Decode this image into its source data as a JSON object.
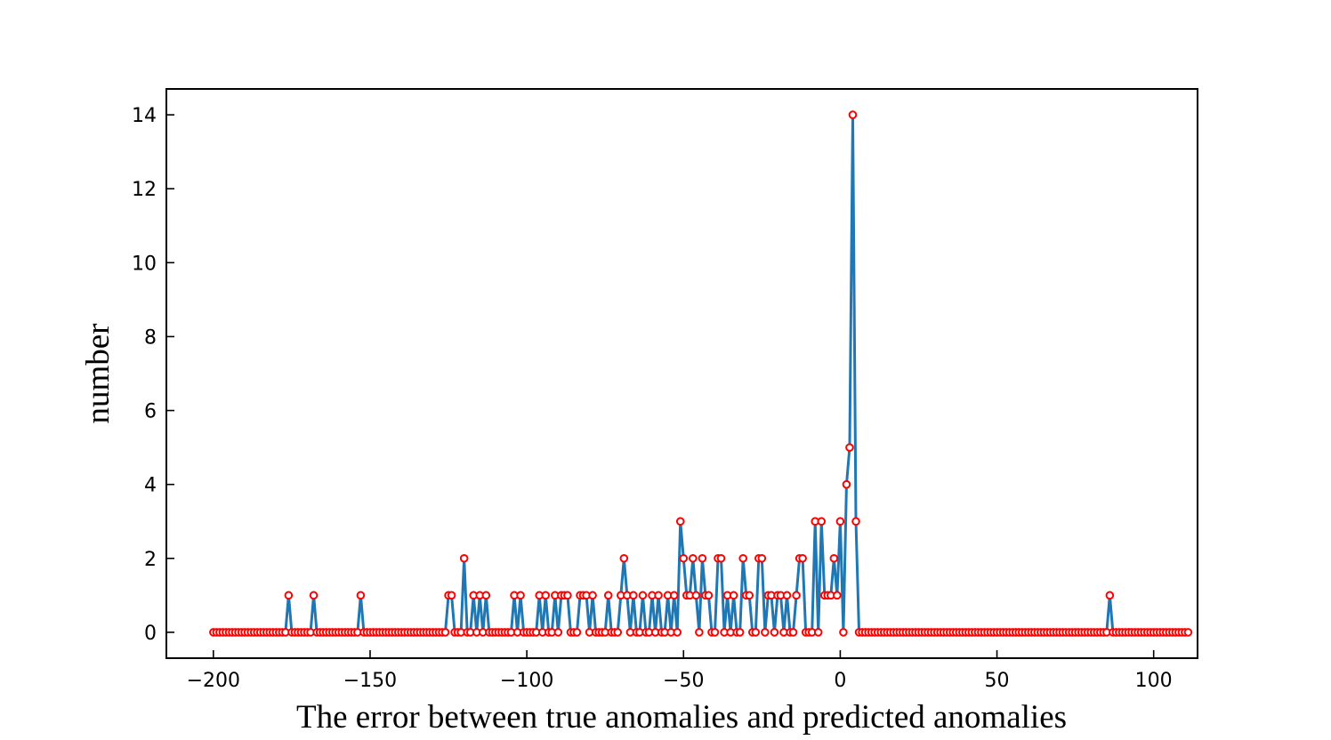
{
  "chart_data": {
    "type": "line",
    "xlabel": "The error between true anomalies and predicted anomalies",
    "ylabel": "number",
    "xlim": [
      -215,
      114
    ],
    "ylim": [
      -0.7,
      14.7
    ],
    "x_ticks": [
      -200,
      -150,
      -100,
      -50,
      0,
      50,
      100
    ],
    "x_tick_labels": [
      "−200",
      "−150",
      "−100",
      "−50",
      "0",
      "50",
      "100"
    ],
    "y_ticks": [
      0,
      2,
      4,
      6,
      8,
      10,
      12,
      14
    ],
    "y_tick_labels": [
      "0",
      "2",
      "4",
      "6",
      "8",
      "10",
      "12",
      "14"
    ],
    "grid": false,
    "series": [
      {
        "line_color": "#1f77b4",
        "marker_edge_color": "#ff0000",
        "marker_face_color": "#ffffff",
        "x_start": -200,
        "x_step": 1,
        "values": [
          0,
          0,
          0,
          0,
          0,
          0,
          0,
          0,
          0,
          0,
          0,
          0,
          0,
          0,
          0,
          0,
          0,
          0,
          0,
          0,
          0,
          0,
          0,
          0,
          1,
          0,
          0,
          0,
          0,
          0,
          0,
          0,
          1,
          0,
          0,
          0,
          0,
          0,
          0,
          0,
          0,
          0,
          0,
          0,
          0,
          0,
          0,
          1,
          0,
          0,
          0,
          0,
          0,
          0,
          0,
          0,
          0,
          0,
          0,
          0,
          0,
          0,
          0,
          0,
          0,
          0,
          0,
          0,
          0,
          0,
          0,
          0,
          0,
          0,
          0,
          1,
          1,
          0,
          0,
          0,
          2,
          0,
          0,
          1,
          0,
          1,
          0,
          1,
          0,
          0,
          0,
          0,
          0,
          0,
          0,
          0,
          1,
          0,
          1,
          0,
          0,
          0,
          0,
          0,
          1,
          0,
          1,
          0,
          0,
          1,
          0,
          1,
          1,
          1,
          0,
          0,
          0,
          1,
          1,
          1,
          0,
          1,
          0,
          0,
          0,
          0,
          1,
          0,
          0,
          0,
          1,
          2,
          1,
          0,
          1,
          0,
          0,
          1,
          0,
          0,
          1,
          0,
          1,
          0,
          0,
          1,
          0,
          1,
          0,
          3,
          2,
          1,
          1,
          2,
          1,
          0,
          2,
          1,
          1,
          0,
          0,
          2,
          2,
          0,
          1,
          0,
          1,
          0,
          0,
          2,
          1,
          1,
          0,
          0,
          2,
          2,
          0,
          1,
          1,
          0,
          1,
          1,
          0,
          1,
          0,
          0,
          1,
          2,
          2,
          0,
          0,
          0,
          3,
          0,
          3,
          1,
          1,
          1,
          2,
          1,
          3,
          0,
          4,
          5,
          14,
          3,
          0,
          0,
          0,
          0,
          0,
          0,
          0,
          0,
          0,
          0,
          0,
          0,
          0,
          0,
          0,
          0,
          0,
          0,
          0,
          0,
          0,
          0,
          0,
          0,
          0,
          0,
          0,
          0,
          0,
          0,
          0,
          0,
          0,
          0,
          0,
          0,
          0,
          0,
          0,
          0,
          0,
          0,
          0,
          0,
          0,
          0,
          0,
          0,
          0,
          0,
          0,
          0,
          0,
          0,
          0,
          0,
          0,
          0,
          0,
          0,
          0,
          0,
          0,
          0,
          0,
          0,
          0,
          0,
          0,
          0,
          0,
          0,
          0,
          0,
          0,
          0,
          0,
          0,
          0,
          0,
          1,
          0,
          0,
          0,
          0,
          0,
          0,
          0,
          0,
          0,
          0,
          0,
          0,
          0,
          0,
          0,
          0,
          0,
          0,
          0,
          0,
          0,
          0,
          0,
          0,
          0
        ]
      }
    ]
  }
}
